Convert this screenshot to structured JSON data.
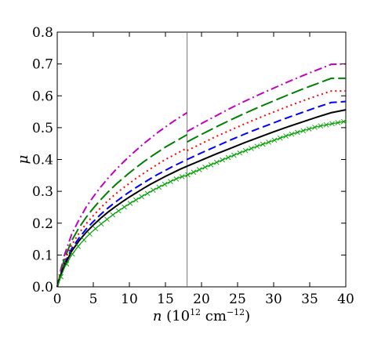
{
  "chart_data": {
    "type": "line",
    "xlabel": {
      "var": "n",
      "open": " (10",
      "exp1": "12",
      "mid": " cm",
      "exp2": "−12",
      "close": ")"
    },
    "ylabel": "μ",
    "xlim": [
      0,
      40
    ],
    "ylim": [
      0.0,
      0.8
    ],
    "xticks": [
      "0",
      "5",
      "10",
      "15",
      "20",
      "25",
      "30",
      "35",
      "40"
    ],
    "yticks": [
      "0.0",
      "0.1",
      "0.2",
      "0.3",
      "0.4",
      "0.5",
      "0.6",
      "0.7",
      "0.8"
    ],
    "grid": false,
    "legend": "none",
    "vertical_line_x": 18,
    "series": [
      {
        "color": "#c000c0",
        "style": "dashdot",
        "marker": "none",
        "segments": [
          {
            "x": [
              0,
              0.5,
              1,
              2,
              3,
              4,
              5,
              6,
              7,
              8,
              9,
              10,
              11,
              12,
              13,
              14,
              15,
              16,
              17,
              18
            ],
            "y": [
              0,
              0.055,
              0.1,
              0.165,
              0.21,
              0.25,
              0.283,
              0.313,
              0.34,
              0.365,
              0.388,
              0.41,
              0.43,
              0.45,
              0.468,
              0.486,
              0.502,
              0.518,
              0.533,
              0.547
            ]
          },
          {
            "x": [
              18,
              20,
              22,
              24,
              26,
              28,
              30,
              32,
              34,
              36,
              38,
              40
            ],
            "y": [
              0.488,
              0.513,
              0.537,
              0.561,
              0.583,
              0.604,
              0.624,
              0.644,
              0.663,
              0.681,
              0.699,
              0.7
            ]
          }
        ]
      },
      {
        "color": "#008000",
        "style": "longdash",
        "marker": "none",
        "segments": [
          {
            "x": [
              0,
              0.5,
              1,
              2,
              3,
              4,
              5,
              6,
              7,
              8,
              9,
              10,
              11,
              12,
              13,
              14,
              15,
              16,
              17,
              18
            ],
            "y": [
              0,
              0.048,
              0.088,
              0.145,
              0.185,
              0.218,
              0.247,
              0.273,
              0.297,
              0.319,
              0.339,
              0.358,
              0.376,
              0.393,
              0.409,
              0.424,
              0.439,
              0.452,
              0.465,
              0.478
            ]
          },
          {
            "x": [
              18,
              20,
              22,
              24,
              26,
              28,
              30,
              32,
              34,
              36,
              38,
              40
            ],
            "y": [
              0.455,
              0.479,
              0.502,
              0.524,
              0.545,
              0.565,
              0.584,
              0.603,
              0.621,
              0.638,
              0.655,
              0.655
            ]
          }
        ]
      },
      {
        "color": "#ff0000",
        "style": "dotted",
        "marker": "none",
        "segments": [
          {
            "x": [
              0,
              0.5,
              1,
              2,
              3,
              4,
              5,
              6,
              7,
              8,
              9,
              10,
              11,
              12,
              13,
              14,
              15,
              16,
              17,
              18
            ],
            "y": [
              0,
              0.043,
              0.08,
              0.132,
              0.168,
              0.198,
              0.224,
              0.248,
              0.27,
              0.29,
              0.308,
              0.325,
              0.342,
              0.357,
              0.372,
              0.386,
              0.4,
              0.412,
              0.424,
              0.436
            ]
          },
          {
            "x": [
              18,
              20,
              22,
              24,
              26,
              28,
              30,
              32,
              34,
              36,
              38,
              40
            ],
            "y": [
              0.428,
              0.45,
              0.472,
              0.492,
              0.512,
              0.531,
              0.549,
              0.567,
              0.584,
              0.6,
              0.615,
              0.615
            ]
          }
        ]
      },
      {
        "color": "#0000ff",
        "style": "dashed",
        "marker": "none",
        "segments": [
          {
            "x": [
              0,
              0.5,
              1,
              2,
              3,
              4,
              5,
              6,
              7,
              8,
              9,
              10,
              11,
              12,
              13,
              14,
              15,
              16,
              17,
              18
            ],
            "y": [
              0,
              0.039,
              0.072,
              0.12,
              0.153,
              0.181,
              0.205,
              0.227,
              0.247,
              0.265,
              0.282,
              0.298,
              0.313,
              0.327,
              0.341,
              0.354,
              0.366,
              0.378,
              0.389,
              0.4
            ]
          },
          {
            "x": [
              18,
              20,
              22,
              24,
              26,
              28,
              30,
              32,
              34,
              36,
              38,
              40
            ],
            "y": [
              0.4,
              0.421,
              0.441,
              0.461,
              0.48,
              0.498,
              0.515,
              0.532,
              0.548,
              0.564,
              0.579,
              0.582
            ]
          }
        ]
      },
      {
        "color": "#000000",
        "style": "solid",
        "marker": "none",
        "segments": [
          {
            "x": [
              0,
              0.5,
              1,
              2,
              3,
              4,
              5,
              6,
              7,
              8,
              9,
              10,
              11,
              12,
              13,
              14,
              15,
              16,
              17,
              18
            ],
            "y": [
              0,
              0.036,
              0.067,
              0.112,
              0.144,
              0.171,
              0.194,
              0.215,
              0.234,
              0.251,
              0.267,
              0.282,
              0.296,
              0.31,
              0.323,
              0.335,
              0.347,
              0.358,
              0.369,
              0.379
            ]
          },
          {
            "x": [
              18,
              20,
              22,
              24,
              26,
              28,
              30,
              32,
              34,
              36,
              38,
              40
            ],
            "y": [
              0.379,
              0.398,
              0.417,
              0.435,
              0.453,
              0.47,
              0.487,
              0.503,
              0.518,
              0.533,
              0.547,
              0.556
            ]
          }
        ]
      },
      {
        "color": "#00a000",
        "style": "solid",
        "marker": "x",
        "segments": [
          {
            "x": [
              0,
              0.5,
              1,
              2,
              3,
              4,
              5,
              6,
              7,
              8,
              9,
              10,
              11,
              12,
              13,
              14,
              15,
              16,
              17,
              18,
              20,
              22,
              24,
              26,
              28,
              30,
              32,
              34,
              36,
              38,
              40
            ],
            "y": [
              0,
              0.032,
              0.06,
              0.1,
              0.13,
              0.155,
              0.177,
              0.196,
              0.214,
              0.231,
              0.246,
              0.261,
              0.274,
              0.287,
              0.3,
              0.312,
              0.323,
              0.334,
              0.344,
              0.351,
              0.371,
              0.39,
              0.409,
              0.427,
              0.444,
              0.46,
              0.476,
              0.49,
              0.503,
              0.512,
              0.52
            ]
          }
        ]
      }
    ]
  }
}
